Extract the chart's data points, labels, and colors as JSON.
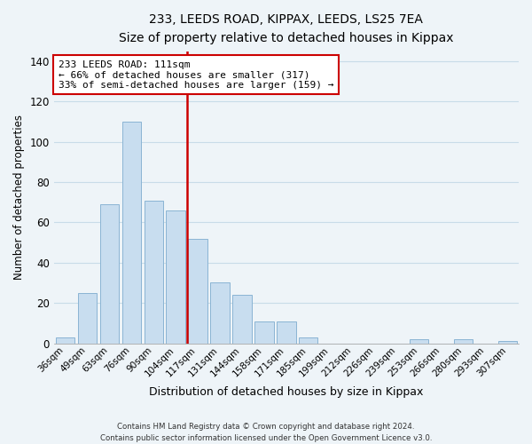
{
  "title": "233, LEEDS ROAD, KIPPAX, LEEDS, LS25 7EA",
  "subtitle": "Size of property relative to detached houses in Kippax",
  "xlabel": "Distribution of detached houses by size in Kippax",
  "ylabel": "Number of detached properties",
  "bin_labels": [
    "36sqm",
    "49sqm",
    "63sqm",
    "76sqm",
    "90sqm",
    "104sqm",
    "117sqm",
    "131sqm",
    "144sqm",
    "158sqm",
    "171sqm",
    "185sqm",
    "199sqm",
    "212sqm",
    "226sqm",
    "239sqm",
    "253sqm",
    "266sqm",
    "280sqm",
    "293sqm",
    "307sqm"
  ],
  "bar_heights": [
    3,
    25,
    69,
    110,
    71,
    66,
    52,
    30,
    24,
    11,
    11,
    3,
    0,
    0,
    0,
    0,
    2,
    0,
    2,
    0,
    1
  ],
  "bar_color": "#c8ddef",
  "bar_edge_color": "#8ab4d4",
  "vline_color": "#cc0000",
  "annotation_text": "233 LEEDS ROAD: 111sqm\n← 66% of detached houses are smaller (317)\n33% of semi-detached houses are larger (159) →",
  "annotation_box_facecolor": "#ffffff",
  "annotation_box_edgecolor": "#cc0000",
  "ylim": [
    0,
    145
  ],
  "yticks": [
    0,
    20,
    40,
    60,
    80,
    100,
    120,
    140
  ],
  "grid_color": "#c8dce8",
  "footer": "Contains HM Land Registry data © Crown copyright and database right 2024.\nContains public sector information licensed under the Open Government Licence v3.0.",
  "bg_color": "#eef4f8"
}
